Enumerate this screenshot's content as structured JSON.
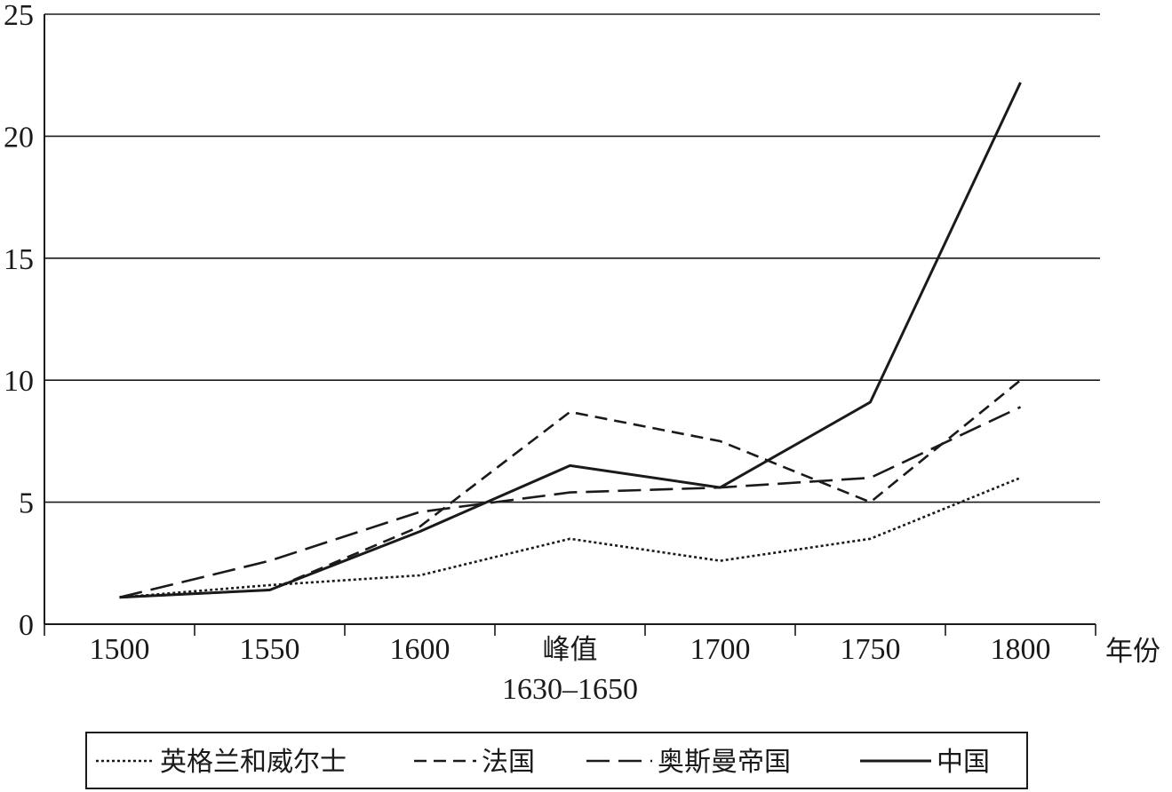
{
  "chart_data": {
    "type": "line",
    "xlabel": "年份",
    "ylabel": "",
    "ylim": [
      0,
      25
    ],
    "yticks": [
      0,
      5,
      10,
      15,
      20,
      25
    ],
    "grid": "horizontal",
    "legend_position": "bottom",
    "categories": [
      [
        "1500"
      ],
      [
        "1550"
      ],
      [
        "1600"
      ],
      [
        "峰值",
        "1630–1650"
      ],
      [
        "1700"
      ],
      [
        "1750"
      ],
      [
        "1800"
      ]
    ],
    "series": [
      {
        "name": "英格兰和威尔士",
        "style": "dotted",
        "color": "#1a1a1a",
        "values": [
          1.1,
          1.6,
          2.0,
          3.5,
          2.6,
          3.5,
          6.0
        ]
      },
      {
        "name": "法国",
        "style": "dashed",
        "color": "#1a1a1a",
        "values": [
          1.1,
          1.4,
          4.0,
          8.7,
          7.5,
          5.0,
          10.0
        ]
      },
      {
        "name": "奥斯曼帝国",
        "style": "longdash",
        "color": "#1a1a1a",
        "values": [
          1.1,
          2.6,
          4.6,
          5.4,
          5.6,
          6.0,
          8.9
        ]
      },
      {
        "name": "中国",
        "style": "solid",
        "color": "#1a1a1a",
        "values": [
          1.1,
          1.4,
          3.8,
          6.5,
          5.6,
          9.1,
          22.2
        ]
      }
    ]
  }
}
